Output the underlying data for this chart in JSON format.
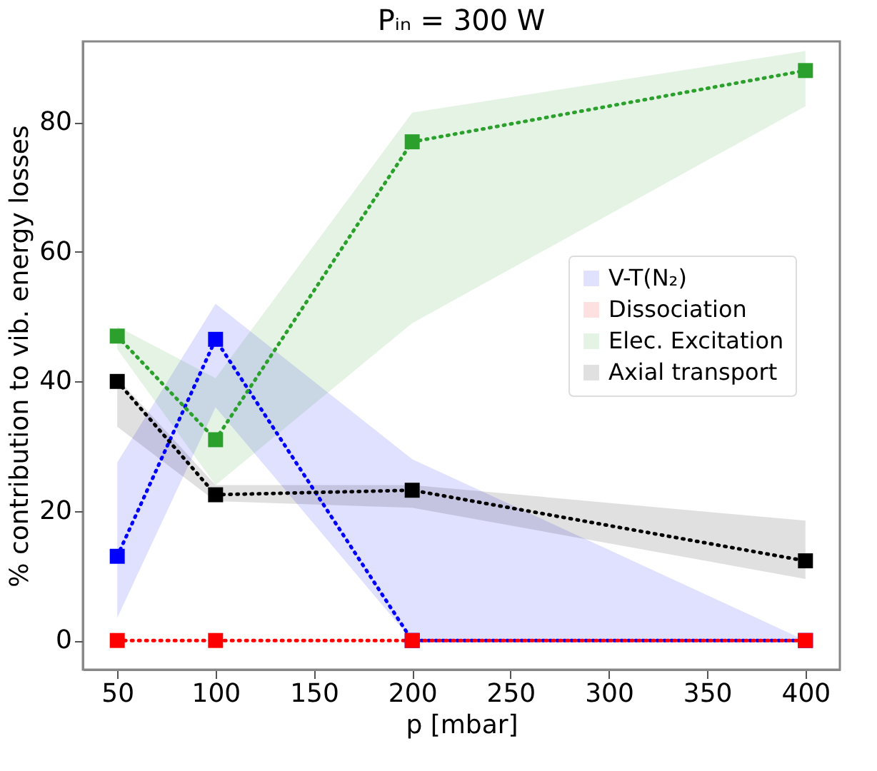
{
  "chart_data": {
    "type": "line",
    "title": "Pᵢₙ = 300 W",
    "xlabel": "p [mbar]",
    "ylabel": "% contribution to vib. energy losses",
    "x": [
      50,
      100,
      200,
      400
    ],
    "series": [
      {
        "name": "V-T(N₂)",
        "color": "#0000ff",
        "values": [
          13,
          46.5,
          0,
          0
        ],
        "lower": [
          3.5,
          36,
          0,
          0
        ],
        "upper": [
          27.5,
          52,
          28,
          0
        ]
      },
      {
        "name": "Dissociation",
        "color": "#ff0000",
        "values": [
          0,
          0,
          0,
          0
        ]
      },
      {
        "name": "Elec. Excitation",
        "color": "#2ca02c",
        "values": [
          47,
          31,
          77,
          88
        ],
        "lower": [
          45,
          24,
          49,
          82.5
        ],
        "upper": [
          48.5,
          40.5,
          81.5,
          91
        ]
      },
      {
        "name": "Axial transport",
        "color": "#000000",
        "values": [
          40,
          22.5,
          23.2,
          12.3
        ],
        "lower": [
          33,
          21.5,
          20.5,
          9.5
        ],
        "upper": [
          40.5,
          24,
          24,
          18.5
        ]
      }
    ],
    "xlim": [
      32.5,
      417.5
    ],
    "ylim": [
      -4.5,
      92.5
    ],
    "xticks": [
      50,
      100,
      150,
      200,
      250,
      300,
      350,
      400
    ],
    "yticks": [
      0,
      20,
      40,
      60,
      80
    ],
    "grid": false,
    "legend": "right",
    "marker": "square",
    "line_style": "dotted"
  }
}
